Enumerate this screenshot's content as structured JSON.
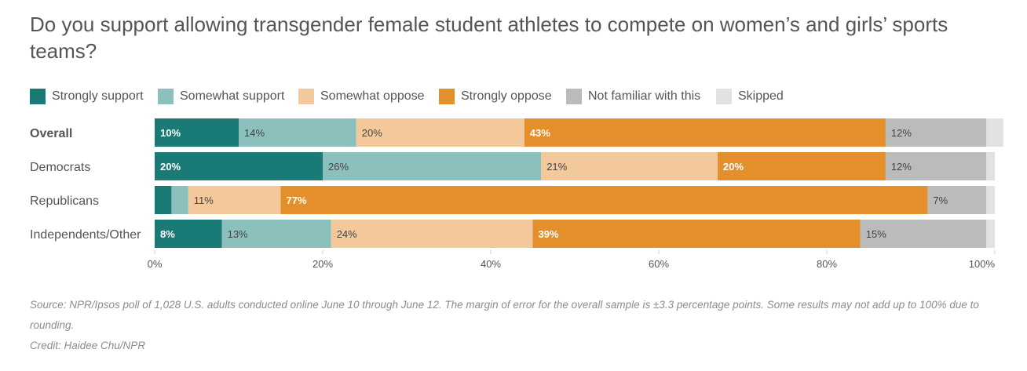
{
  "chart_data": {
    "type": "bar",
    "orientation": "horizontal",
    "stacked": true,
    "title": "Do you support allowing transgender female student athletes to compete on women’s and girls’ sports teams?",
    "legend_position": "top-left",
    "grid": false,
    "xlim": [
      0,
      100
    ],
    "x_ticks": [
      "0%",
      "20%",
      "40%",
      "60%",
      "80%",
      "100%"
    ],
    "x_tick_values": [
      0,
      20,
      40,
      60,
      80,
      100
    ],
    "categories": [
      "Overall",
      "Democrats",
      "Republicans",
      "Independents/Other"
    ],
    "category_bold": [
      true,
      false,
      false,
      false
    ],
    "series": [
      {
        "name": "Strongly support",
        "color": "#1a7a75",
        "label_color": "#ffffff",
        "label_bold": true,
        "values": [
          10,
          20,
          2,
          8
        ],
        "labels": [
          "10%",
          "20%",
          "",
          "8%"
        ]
      },
      {
        "name": "Somewhat support",
        "color": "#8cc0bc",
        "label_color": "#444444",
        "label_bold": false,
        "values": [
          14,
          26,
          2,
          13
        ],
        "labels": [
          "14%",
          "26%",
          "",
          "13%"
        ]
      },
      {
        "name": "Somewhat oppose",
        "color": "#f3c89a",
        "label_color": "#444444",
        "label_bold": false,
        "values": [
          20,
          21,
          11,
          24
        ],
        "labels": [
          "20%",
          "21%",
          "11%",
          "24%"
        ]
      },
      {
        "name": "Strongly oppose",
        "color": "#e38f2c",
        "label_color": "#ffffff",
        "label_bold": true,
        "values": [
          43,
          20,
          77,
          39
        ],
        "labels": [
          "43%",
          "20%",
          "77%",
          "39%"
        ]
      },
      {
        "name": "Not familiar with this",
        "color": "#bbbbbb",
        "label_color": "#444444",
        "label_bold": false,
        "values": [
          12,
          12,
          7,
          15
        ],
        "labels": [
          "12%",
          "12%",
          "7%",
          "15%"
        ]
      },
      {
        "name": "Skipped",
        "color": "#e2e2e2",
        "label_color": "#444444",
        "label_bold": false,
        "values": [
          2,
          1,
          1,
          1
        ],
        "labels": [
          "",
          "",
          "",
          ""
        ]
      }
    ]
  },
  "footer": {
    "source": "Source: NPR/Ipsos poll of 1,028 U.S. adults conducted online June 10 through June 12. The margin of error for the overall sample is ±3.3 percentage points. Some results may not add up to 100% due to rounding.",
    "credit": "Credit: Haidee Chu/NPR"
  }
}
